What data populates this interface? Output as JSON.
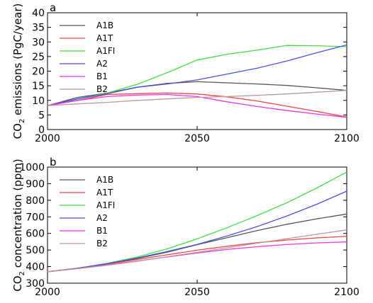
{
  "chart_data": [
    {
      "type": "line",
      "panel_label": "a",
      "ylabel_main": "CO",
      "ylabel_sub": "2",
      "ylabel_rest": " emissions (PgC/year)",
      "xlabel": "",
      "xlim": [
        2000,
        2100
      ],
      "ylim": [
        0,
        40
      ],
      "xticks": [
        2000,
        2050,
        2100
      ],
      "yticks": [
        0,
        5,
        10,
        15,
        20,
        25,
        30,
        35,
        40
      ],
      "grid": false,
      "legend_position": "top-left",
      "series": [
        {
          "name": "A1B",
          "color": "#555555",
          "x": [
            2000,
            2010,
            2020,
            2030,
            2040,
            2050,
            2060,
            2070,
            2080,
            2090,
            2100
          ],
          "y": [
            8.2,
            11.0,
            12.5,
            14.5,
            15.8,
            16.4,
            16.0,
            15.6,
            15.1,
            14.3,
            13.4
          ]
        },
        {
          "name": "A1T",
          "color": "#ee4444",
          "x": [
            2000,
            2010,
            2020,
            2030,
            2040,
            2050,
            2060,
            2070,
            2080,
            2090,
            2100
          ],
          "y": [
            8.2,
            10.0,
            12.0,
            12.3,
            12.5,
            12.2,
            11.2,
            9.8,
            8.0,
            6.2,
            4.3
          ]
        },
        {
          "name": "A1FI",
          "color": "#44dd44",
          "x": [
            2000,
            2010,
            2020,
            2030,
            2040,
            2050,
            2060,
            2070,
            2080,
            2090,
            2100
          ],
          "y": [
            8.2,
            10.5,
            12.5,
            15.5,
            19.5,
            23.8,
            25.8,
            27.2,
            28.8,
            28.7,
            28.4
          ]
        },
        {
          "name": "A2",
          "color": "#4455dd",
          "x": [
            2000,
            2010,
            2020,
            2030,
            2040,
            2050,
            2060,
            2070,
            2080,
            2090,
            2100
          ],
          "y": [
            8.2,
            10.5,
            12.3,
            14.5,
            15.6,
            17.0,
            19.0,
            21.0,
            23.5,
            26.3,
            29.0
          ]
        },
        {
          "name": "B1",
          "color": "#ee33ee",
          "x": [
            2000,
            2010,
            2020,
            2030,
            2040,
            2050,
            2060,
            2070,
            2080,
            2090,
            2100
          ],
          "y": [
            8.2,
            10.0,
            11.3,
            11.8,
            12.0,
            11.3,
            9.5,
            7.9,
            6.5,
            5.3,
            4.2
          ]
        },
        {
          "name": "B2",
          "color": "#bb9999",
          "x": [
            2000,
            2010,
            2020,
            2030,
            2040,
            2050,
            2060,
            2070,
            2080,
            2090,
            2100
          ],
          "y": [
            8.2,
            8.8,
            9.3,
            10.0,
            10.5,
            11.0,
            11.3,
            11.7,
            12.2,
            12.8,
            13.4
          ]
        }
      ]
    },
    {
      "type": "line",
      "panel_label": "b",
      "ylabel_main": "CO",
      "ylabel_sub": "2",
      "ylabel_rest": " concentration (ppm)",
      "xlabel": "",
      "xlim": [
        2000,
        2100
      ],
      "ylim": [
        300,
        1000
      ],
      "xticks": [
        2000,
        2050,
        2100
      ],
      "yticks": [
        300,
        400,
        500,
        600,
        700,
        800,
        900,
        1000
      ],
      "grid": false,
      "legend_position": "top-left",
      "series": [
        {
          "name": "A1B",
          "color": "#555555",
          "x": [
            2000,
            2010,
            2020,
            2030,
            2040,
            2050,
            2060,
            2070,
            2080,
            2090,
            2100
          ],
          "y": [
            369,
            390,
            417,
            449,
            487,
            532,
            574,
            617,
            655,
            688,
            717
          ]
        },
        {
          "name": "A1T",
          "color": "#ee4444",
          "x": [
            2000,
            2010,
            2020,
            2030,
            2040,
            2050,
            2060,
            2070,
            2080,
            2090,
            2100
          ],
          "y": [
            369,
            390,
            415,
            443,
            471,
            499,
            523,
            544,
            560,
            573,
            582
          ]
        },
        {
          "name": "A1FI",
          "color": "#44dd44",
          "x": [
            2000,
            2010,
            2020,
            2030,
            2040,
            2050,
            2060,
            2070,
            2080,
            2090,
            2100
          ],
          "y": [
            369,
            390,
            420,
            458,
            507,
            567,
            634,
            707,
            785,
            874,
            970
          ]
        },
        {
          "name": "A2",
          "color": "#4455dd",
          "x": [
            2000,
            2010,
            2020,
            2030,
            2040,
            2050,
            2060,
            2070,
            2080,
            2090,
            2100
          ],
          "y": [
            369,
            390,
            418,
            452,
            491,
            534,
            585,
            641,
            705,
            776,
            855
          ]
        },
        {
          "name": "B1",
          "color": "#ee33ee",
          "x": [
            2000,
            2010,
            2020,
            2030,
            2040,
            2050,
            2060,
            2070,
            2080,
            2090,
            2100
          ],
          "y": [
            369,
            388,
            410,
            434,
            458,
            482,
            503,
            520,
            533,
            543,
            549
          ]
        },
        {
          "name": "B2",
          "color": "#bb9999",
          "x": [
            2000,
            2010,
            2020,
            2030,
            2040,
            2050,
            2060,
            2070,
            2080,
            2090,
            2100
          ],
          "y": [
            369,
            387,
            408,
            432,
            459,
            486,
            513,
            541,
            568,
            595,
            621
          ]
        }
      ]
    }
  ]
}
